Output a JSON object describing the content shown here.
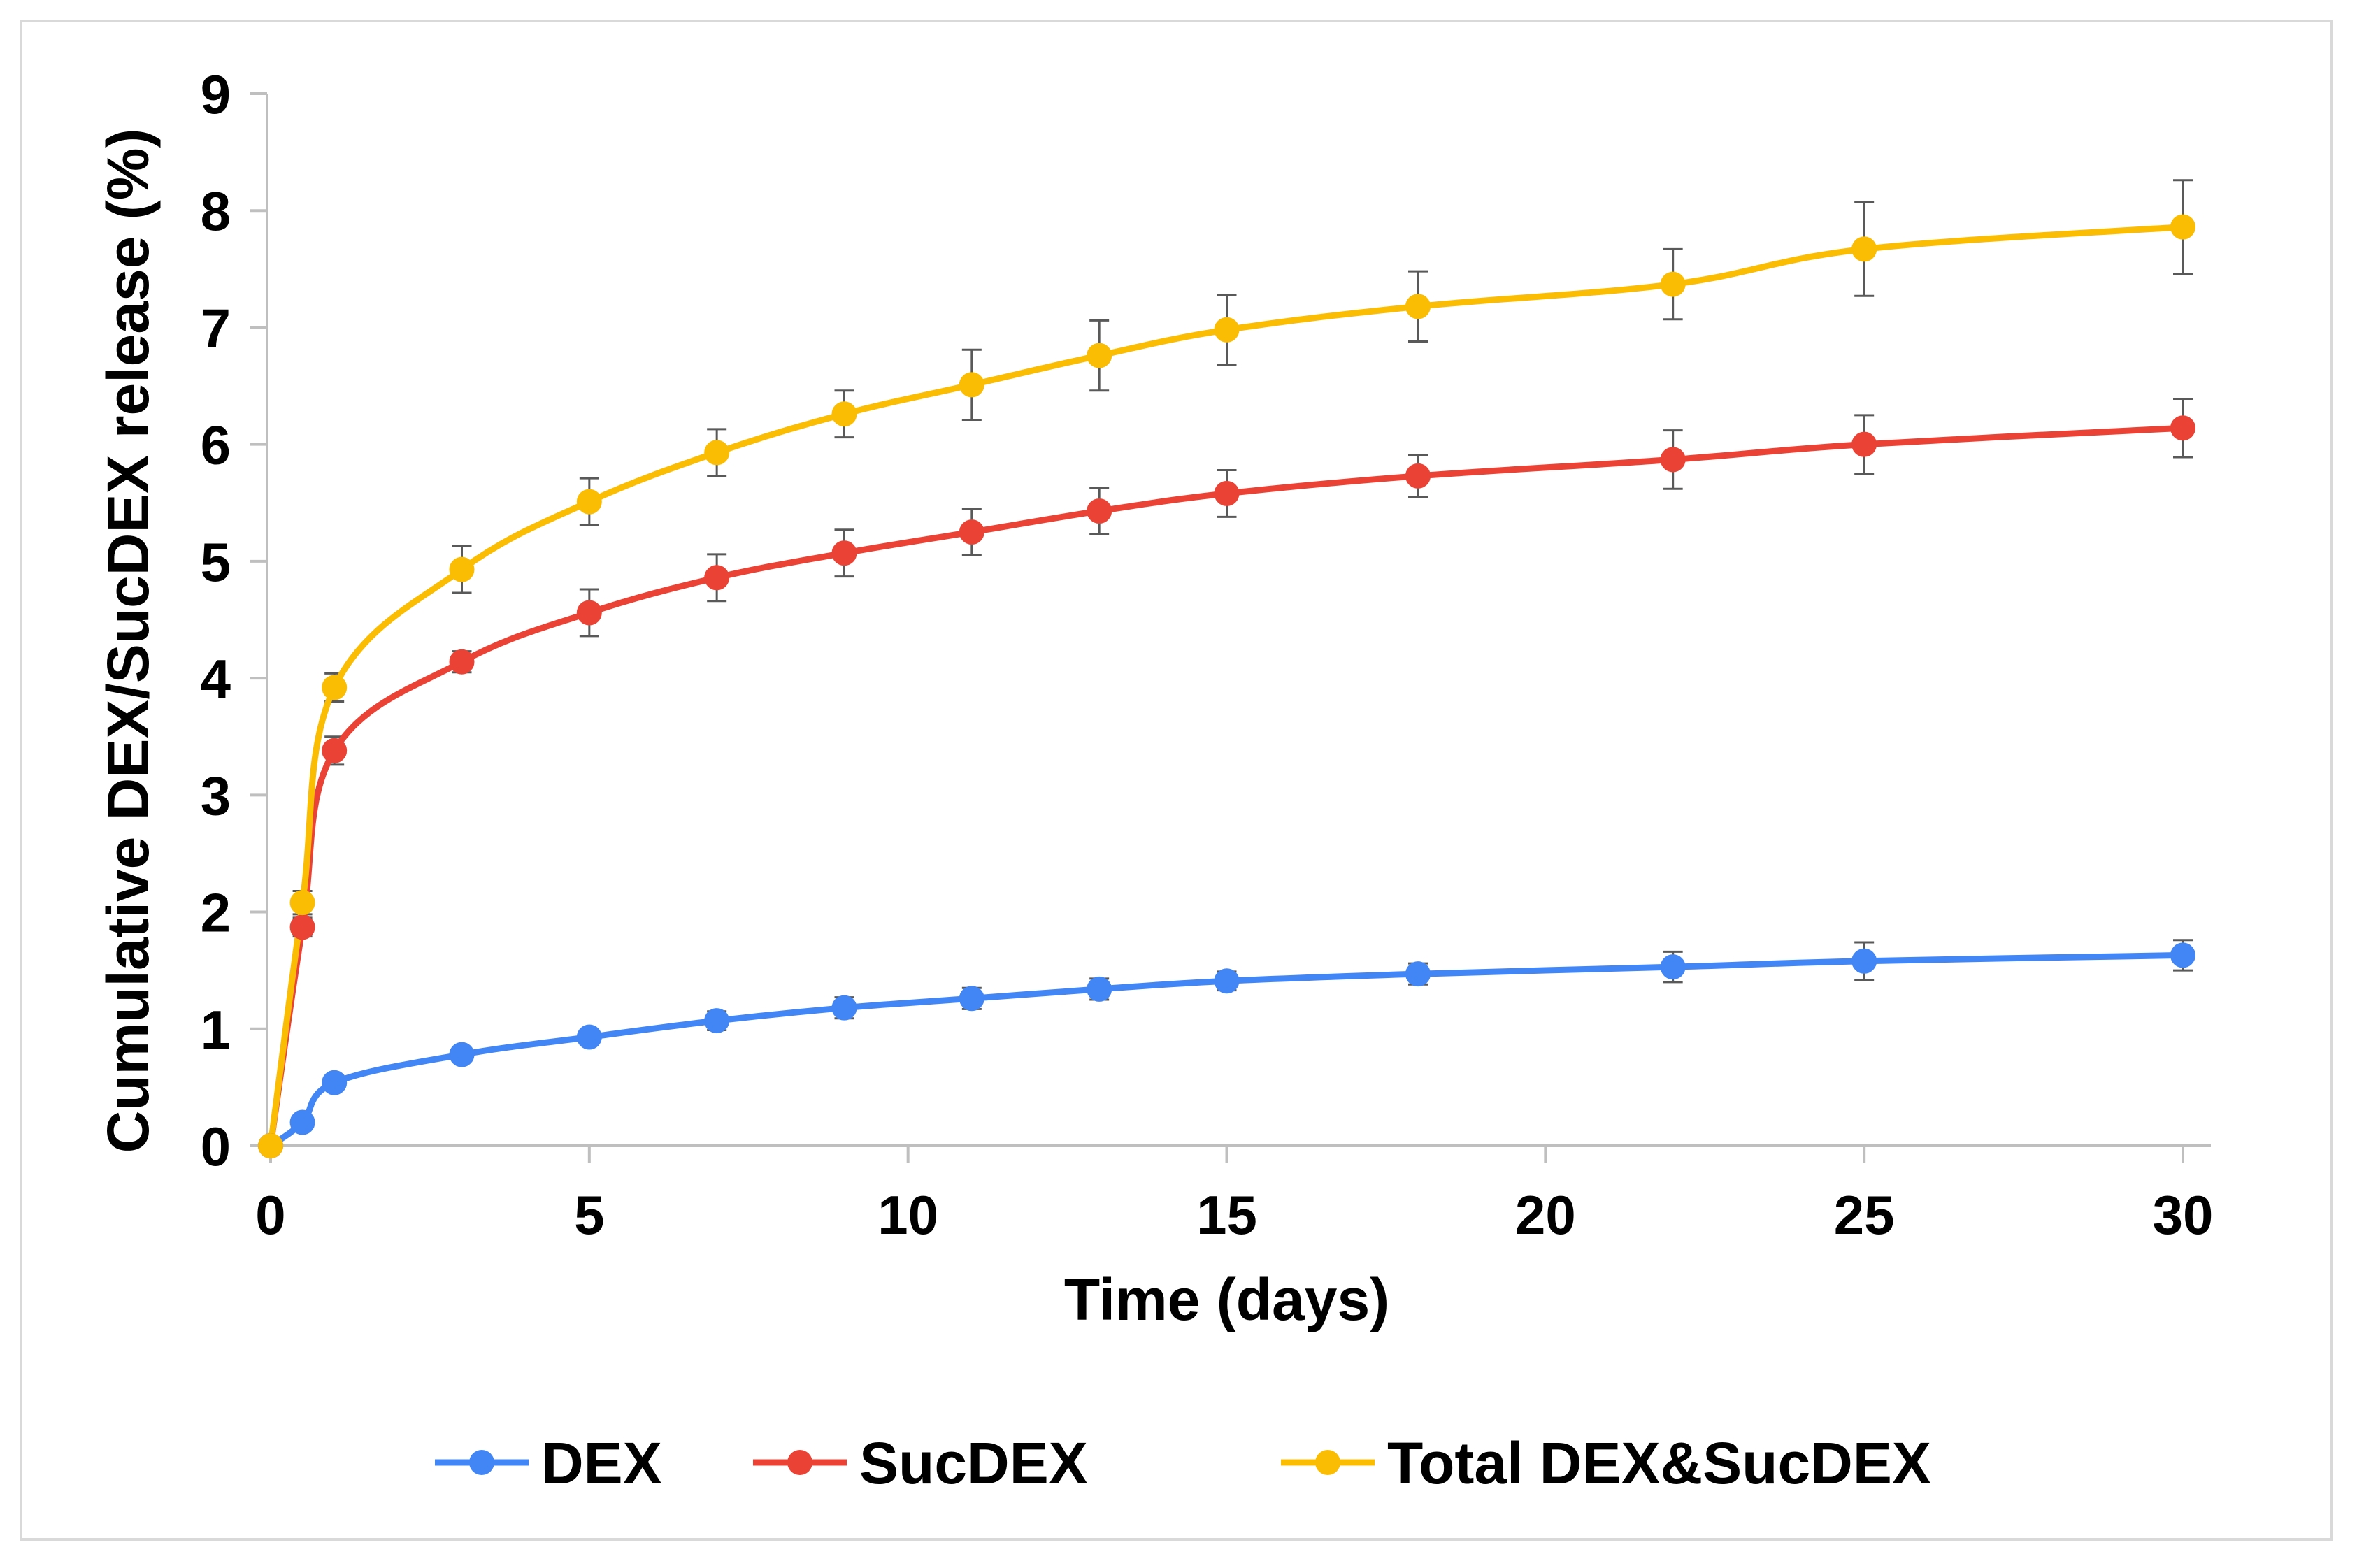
{
  "chart_data": {
    "type": "line",
    "title": "",
    "xlabel": "Time (days)",
    "ylabel": "Cumulative DEX/SucDEX release (%)",
    "xlim": [
      0,
      30
    ],
    "ylim": [
      0,
      9
    ],
    "xticks": [
      0,
      5,
      10,
      15,
      20,
      25,
      30
    ],
    "yticks": [
      0,
      1,
      2,
      3,
      4,
      5,
      6,
      7,
      8,
      9
    ],
    "legend_position": "bottom",
    "x": [
      0,
      0.5,
      1,
      3,
      5,
      7,
      9,
      11,
      13,
      15,
      18,
      22,
      25,
      30
    ],
    "series": [
      {
        "name": "DEX",
        "color": "#4285f4",
        "values": [
          0,
          0.2,
          0.54,
          0.78,
          0.93,
          1.07,
          1.18,
          1.26,
          1.34,
          1.41,
          1.47,
          1.53,
          1.58,
          1.63
        ],
        "errors": [
          0,
          0.04,
          0.05,
          0.05,
          0.06,
          0.08,
          0.09,
          0.09,
          0.09,
          0.08,
          0.09,
          0.13,
          0.16,
          0.13
        ]
      },
      {
        "name": "SucDEX",
        "color": "#ea4335",
        "values": [
          0,
          1.87,
          3.38,
          4.14,
          4.56,
          4.86,
          5.07,
          5.25,
          5.43,
          5.58,
          5.73,
          5.87,
          6.0,
          6.14
        ],
        "errors": [
          0,
          0.08,
          0.12,
          0.09,
          0.2,
          0.2,
          0.2,
          0.2,
          0.2,
          0.2,
          0.18,
          0.25,
          0.25,
          0.25
        ]
      },
      {
        "name": "Total DEX&SucDEX",
        "color": "#fbbc04",
        "values": [
          0,
          2.08,
          3.92,
          4.93,
          5.51,
          5.93,
          6.26,
          6.51,
          6.76,
          6.98,
          7.18,
          7.37,
          7.67,
          7.86
        ],
        "errors": [
          0,
          0.1,
          0.12,
          0.2,
          0.2,
          0.2,
          0.2,
          0.3,
          0.3,
          0.3,
          0.3,
          0.3,
          0.4,
          0.4
        ]
      }
    ]
  }
}
